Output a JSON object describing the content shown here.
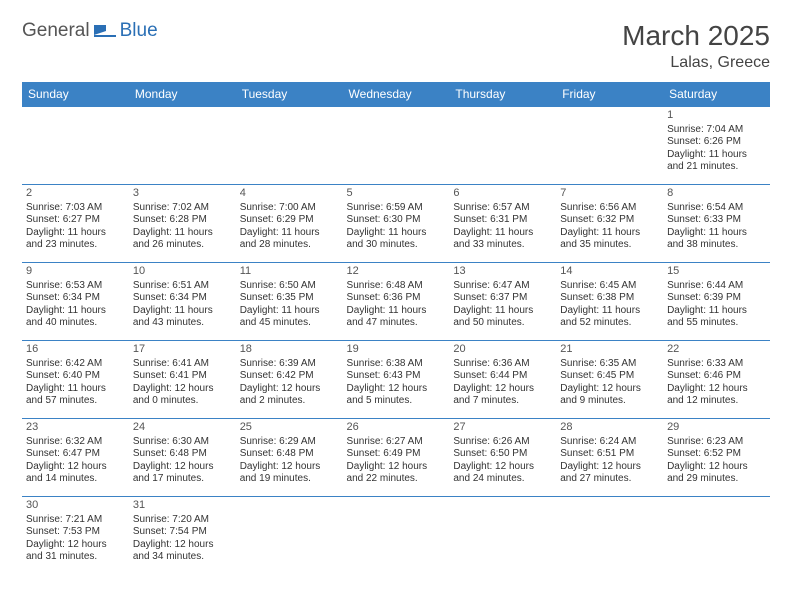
{
  "logo": {
    "text1": "General",
    "text2": "Blue",
    "icon_color": "#2a6fb5"
  },
  "title": "March 2025",
  "location": "Lalas, Greece",
  "header_bg": "#3b82c5",
  "header_fg": "#ffffff",
  "border_color": "#3b82c5",
  "weekdays": [
    "Sunday",
    "Monday",
    "Tuesday",
    "Wednesday",
    "Thursday",
    "Friday",
    "Saturday"
  ],
  "weeks": [
    [
      null,
      null,
      null,
      null,
      null,
      null,
      {
        "n": "1",
        "sr": "7:04 AM",
        "ss": "6:26 PM",
        "dl": "11 hours and 21 minutes."
      }
    ],
    [
      {
        "n": "2",
        "sr": "7:03 AM",
        "ss": "6:27 PM",
        "dl": "11 hours and 23 minutes."
      },
      {
        "n": "3",
        "sr": "7:02 AM",
        "ss": "6:28 PM",
        "dl": "11 hours and 26 minutes."
      },
      {
        "n": "4",
        "sr": "7:00 AM",
        "ss": "6:29 PM",
        "dl": "11 hours and 28 minutes."
      },
      {
        "n": "5",
        "sr": "6:59 AM",
        "ss": "6:30 PM",
        "dl": "11 hours and 30 minutes."
      },
      {
        "n": "6",
        "sr": "6:57 AM",
        "ss": "6:31 PM",
        "dl": "11 hours and 33 minutes."
      },
      {
        "n": "7",
        "sr": "6:56 AM",
        "ss": "6:32 PM",
        "dl": "11 hours and 35 minutes."
      },
      {
        "n": "8",
        "sr": "6:54 AM",
        "ss": "6:33 PM",
        "dl": "11 hours and 38 minutes."
      }
    ],
    [
      {
        "n": "9",
        "sr": "6:53 AM",
        "ss": "6:34 PM",
        "dl": "11 hours and 40 minutes."
      },
      {
        "n": "10",
        "sr": "6:51 AM",
        "ss": "6:34 PM",
        "dl": "11 hours and 43 minutes."
      },
      {
        "n": "11",
        "sr": "6:50 AM",
        "ss": "6:35 PM",
        "dl": "11 hours and 45 minutes."
      },
      {
        "n": "12",
        "sr": "6:48 AM",
        "ss": "6:36 PM",
        "dl": "11 hours and 47 minutes."
      },
      {
        "n": "13",
        "sr": "6:47 AM",
        "ss": "6:37 PM",
        "dl": "11 hours and 50 minutes."
      },
      {
        "n": "14",
        "sr": "6:45 AM",
        "ss": "6:38 PM",
        "dl": "11 hours and 52 minutes."
      },
      {
        "n": "15",
        "sr": "6:44 AM",
        "ss": "6:39 PM",
        "dl": "11 hours and 55 minutes."
      }
    ],
    [
      {
        "n": "16",
        "sr": "6:42 AM",
        "ss": "6:40 PM",
        "dl": "11 hours and 57 minutes."
      },
      {
        "n": "17",
        "sr": "6:41 AM",
        "ss": "6:41 PM",
        "dl": "12 hours and 0 minutes."
      },
      {
        "n": "18",
        "sr": "6:39 AM",
        "ss": "6:42 PM",
        "dl": "12 hours and 2 minutes."
      },
      {
        "n": "19",
        "sr": "6:38 AM",
        "ss": "6:43 PM",
        "dl": "12 hours and 5 minutes."
      },
      {
        "n": "20",
        "sr": "6:36 AM",
        "ss": "6:44 PM",
        "dl": "12 hours and 7 minutes."
      },
      {
        "n": "21",
        "sr": "6:35 AM",
        "ss": "6:45 PM",
        "dl": "12 hours and 9 minutes."
      },
      {
        "n": "22",
        "sr": "6:33 AM",
        "ss": "6:46 PM",
        "dl": "12 hours and 12 minutes."
      }
    ],
    [
      {
        "n": "23",
        "sr": "6:32 AM",
        "ss": "6:47 PM",
        "dl": "12 hours and 14 minutes."
      },
      {
        "n": "24",
        "sr": "6:30 AM",
        "ss": "6:48 PM",
        "dl": "12 hours and 17 minutes."
      },
      {
        "n": "25",
        "sr": "6:29 AM",
        "ss": "6:48 PM",
        "dl": "12 hours and 19 minutes."
      },
      {
        "n": "26",
        "sr": "6:27 AM",
        "ss": "6:49 PM",
        "dl": "12 hours and 22 minutes."
      },
      {
        "n": "27",
        "sr": "6:26 AM",
        "ss": "6:50 PM",
        "dl": "12 hours and 24 minutes."
      },
      {
        "n": "28",
        "sr": "6:24 AM",
        "ss": "6:51 PM",
        "dl": "12 hours and 27 minutes."
      },
      {
        "n": "29",
        "sr": "6:23 AM",
        "ss": "6:52 PM",
        "dl": "12 hours and 29 minutes."
      }
    ],
    [
      {
        "n": "30",
        "sr": "7:21 AM",
        "ss": "7:53 PM",
        "dl": "12 hours and 31 minutes."
      },
      {
        "n": "31",
        "sr": "7:20 AM",
        "ss": "7:54 PM",
        "dl": "12 hours and 34 minutes."
      },
      null,
      null,
      null,
      null,
      null
    ]
  ],
  "labels": {
    "sunrise": "Sunrise:",
    "sunset": "Sunset:",
    "daylight": "Daylight:"
  }
}
